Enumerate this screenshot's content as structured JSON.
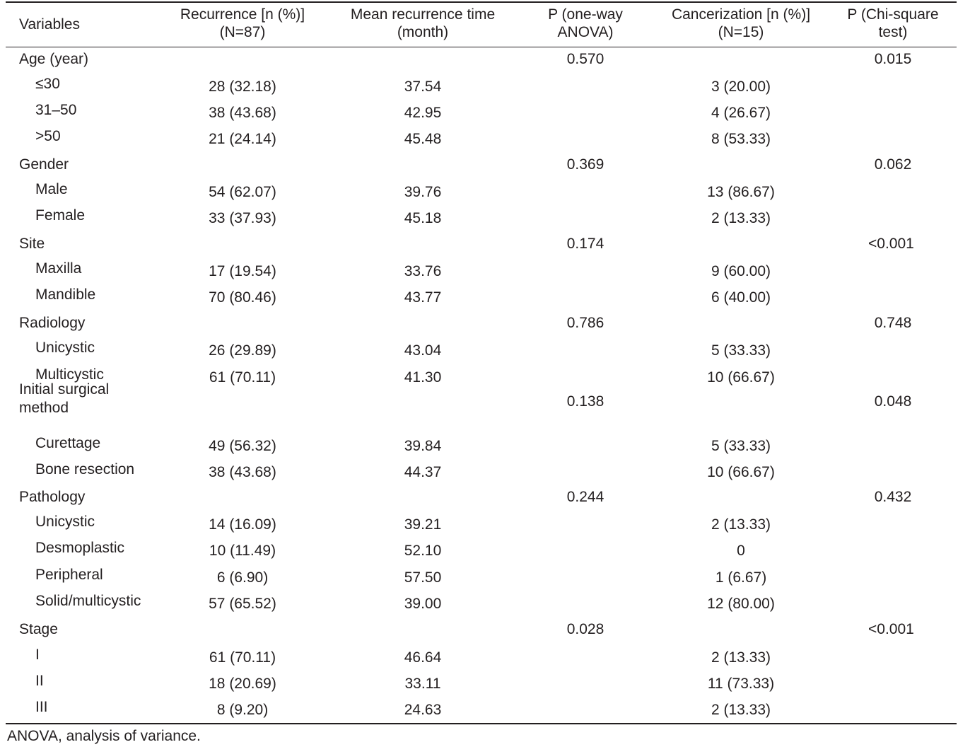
{
  "table": {
    "headers": {
      "variables": "Variables",
      "recurrence": "Recurrence [n (%)]\n(N=87)",
      "mean_time": "Mean recurrence time\n(month)",
      "p_anova": "P (one-way\nANOVA)",
      "cancerization": "Cancerization [n (%)]\n(N=15)",
      "p_chi": "P (Chi-square\ntest)"
    },
    "groups": [
      {
        "label": "Age (year)",
        "p_anova": "0.570",
        "p_chi": "0.015",
        "rows": [
          {
            "label": "≤30",
            "recurrence": "28 (32.18)",
            "mean_time": "37.54",
            "cancerization": "3 (20.00)"
          },
          {
            "label": "31–50",
            "recurrence": "38 (43.68)",
            "mean_time": "42.95",
            "cancerization": "4 (26.67)"
          },
          {
            "label": ">50",
            "recurrence": "21 (24.14)",
            "mean_time": "45.48",
            "cancerization": "8 (53.33)"
          }
        ]
      },
      {
        "label": "Gender",
        "p_anova": "0.369",
        "p_chi": "0.062",
        "rows": [
          {
            "label": "Male",
            "recurrence": "54 (62.07)",
            "mean_time": "39.76",
            "cancerization": "13 (86.67)"
          },
          {
            "label": "Female",
            "recurrence": "33 (37.93)",
            "mean_time": "45.18",
            "cancerization": "2 (13.33)"
          }
        ]
      },
      {
        "label": "Site",
        "p_anova": "0.174",
        "p_chi": "<0.001",
        "rows": [
          {
            "label": "Maxilla",
            "recurrence": "17 (19.54)",
            "mean_time": "33.76",
            "cancerization": "9 (60.00)"
          },
          {
            "label": "Mandible",
            "recurrence": "70 (80.46)",
            "mean_time": "43.77",
            "cancerization": "6 (40.00)"
          }
        ]
      },
      {
        "label": "Radiology",
        "p_anova": "0.786",
        "p_chi": "0.748",
        "rows": [
          {
            "label": "Unicystic",
            "recurrence": "26 (29.89)",
            "mean_time": "43.04",
            "cancerization": "5 (33.33)"
          },
          {
            "label": "Multicystic",
            "recurrence": "61 (70.11)",
            "mean_time": "41.30",
            "cancerization": "10 (66.67)"
          }
        ]
      },
      {
        "label": "Initial surgical method",
        "p_anova": "0.138",
        "p_chi": "0.048",
        "rows": [
          {
            "label": "Curettage",
            "recurrence": "49 (56.32)",
            "mean_time": "39.84",
            "cancerization": "5 (33.33)"
          },
          {
            "label": "Bone resection",
            "recurrence": "38 (43.68)",
            "mean_time": "44.37",
            "cancerization": "10 (66.67)"
          }
        ]
      },
      {
        "label": "Pathology",
        "p_anova": "0.244",
        "p_chi": "0.432",
        "rows": [
          {
            "label": "Unicystic",
            "recurrence": "14 (16.09)",
            "mean_time": "39.21",
            "cancerization": "2 (13.33)"
          },
          {
            "label": "Desmoplastic",
            "recurrence": "10 (11.49)",
            "mean_time": "52.10",
            "cancerization": "0"
          },
          {
            "label": "Peripheral",
            "recurrence": "6 (6.90)",
            "mean_time": "57.50",
            "cancerization": "1 (6.67)"
          },
          {
            "label": "Solid/multicystic",
            "recurrence": "57 (65.52)",
            "mean_time": "39.00",
            "cancerization": "12 (80.00)"
          }
        ]
      },
      {
        "label": "Stage",
        "p_anova": "0.028",
        "p_chi": "<0.001",
        "rows": [
          {
            "label": "I",
            "recurrence": "61 (70.11)",
            "mean_time": "46.64",
            "cancerization": "2 (13.33)"
          },
          {
            "label": "II",
            "recurrence": "18 (20.69)",
            "mean_time": "33.11",
            "cancerization": "11 (73.33)"
          },
          {
            "label": "III",
            "recurrence": "8 (9.20)",
            "mean_time": "24.63",
            "cancerization": "2 (13.33)"
          }
        ]
      }
    ]
  },
  "footnote": "ANOVA, analysis of variance."
}
